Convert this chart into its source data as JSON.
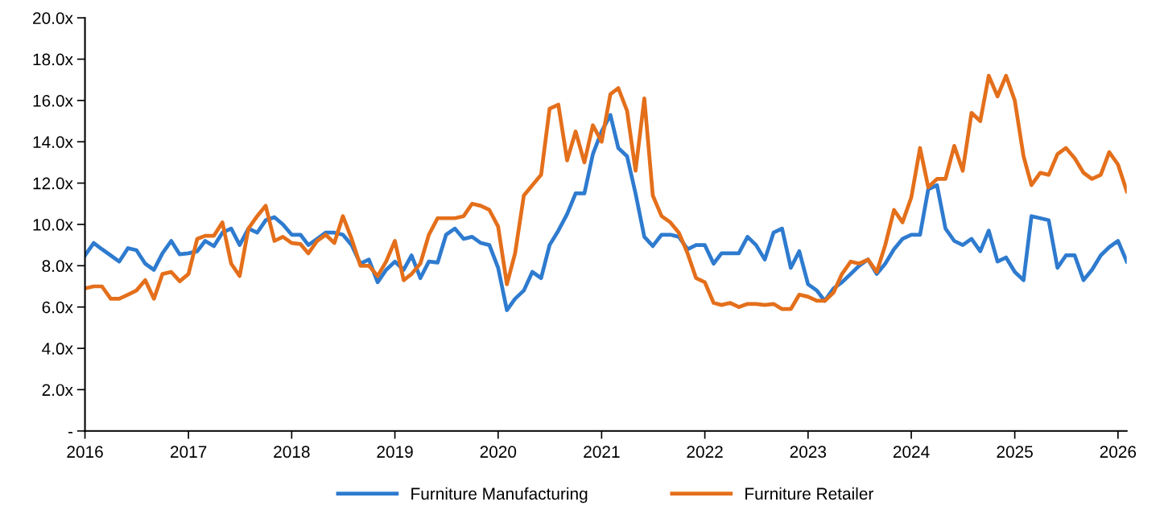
{
  "chart_data": {
    "type": "line",
    "x": [
      "2016-01",
      "2016-02",
      "2016-03",
      "2016-04",
      "2016-05",
      "2016-06",
      "2016-07",
      "2016-08",
      "2016-09",
      "2016-10",
      "2016-11",
      "2016-12",
      "2017-01",
      "2017-02",
      "2017-03",
      "2017-04",
      "2017-05",
      "2017-06",
      "2017-07",
      "2017-08",
      "2017-09",
      "2017-10",
      "2017-11",
      "2017-12",
      "2018-01",
      "2018-02",
      "2018-03",
      "2018-04",
      "2018-05",
      "2018-06",
      "2018-07",
      "2018-08",
      "2018-09",
      "2018-10",
      "2018-11",
      "2018-12",
      "2019-01",
      "2019-02",
      "2019-03",
      "2019-04",
      "2019-05",
      "2019-06",
      "2019-07",
      "2019-08",
      "2019-09",
      "2019-10",
      "2019-11",
      "2019-12",
      "2020-01",
      "2020-02",
      "2020-03",
      "2020-04",
      "2020-05",
      "2020-06",
      "2020-07",
      "2020-08",
      "2020-09",
      "2020-10",
      "2020-11",
      "2020-12",
      "2021-01",
      "2021-02",
      "2021-03",
      "2021-04",
      "2021-05",
      "2021-06",
      "2021-07",
      "2021-08",
      "2021-09",
      "2021-10",
      "2021-11",
      "2021-12",
      "2022-01",
      "2022-02",
      "2022-03",
      "2022-04",
      "2022-05",
      "2022-06",
      "2022-07",
      "2022-08",
      "2022-09",
      "2022-10",
      "2022-11",
      "2022-12",
      "2023-01",
      "2023-02",
      "2023-03",
      "2023-04",
      "2023-05",
      "2023-06",
      "2023-07",
      "2023-08",
      "2023-09",
      "2023-10",
      "2023-11",
      "2023-12",
      "2024-01",
      "2024-02",
      "2024-03",
      "2024-04",
      "2024-05",
      "2024-06",
      "2024-07",
      "2024-08",
      "2024-09",
      "2024-10",
      "2024-11",
      "2024-12",
      "2025-01",
      "2025-02",
      "2025-03",
      "2025-04",
      "2025-05",
      "2025-06",
      "2025-07",
      "2025-08",
      "2025-09",
      "2025-10",
      "2025-11",
      "2025-12",
      "2026-01",
      "2026-02"
    ],
    "series": [
      {
        "name": "Furniture Manufacturing",
        "color": "#2e7bcf",
        "values": [
          8.5,
          9.1,
          8.8,
          8.5,
          8.2,
          8.85,
          8.75,
          8.1,
          7.8,
          8.6,
          9.2,
          8.55,
          8.6,
          8.7,
          9.2,
          8.95,
          9.6,
          9.8,
          9.0,
          9.8,
          9.6,
          10.2,
          10.35,
          10.0,
          9.5,
          9.5,
          9.0,
          9.3,
          9.6,
          9.6,
          9.5,
          9.0,
          8.1,
          8.3,
          7.2,
          7.8,
          8.2,
          7.8,
          8.5,
          7.4,
          8.2,
          8.15,
          9.5,
          9.8,
          9.3,
          9.4,
          9.1,
          9.0,
          7.9,
          5.85,
          6.4,
          6.8,
          7.7,
          7.4,
          9.0,
          9.7,
          10.5,
          11.5,
          11.5,
          13.4,
          14.5,
          15.3,
          13.7,
          13.3,
          11.5,
          9.4,
          8.95,
          9.5,
          9.5,
          9.4,
          8.8,
          9.0,
          9.0,
          8.1,
          8.6,
          8.6,
          8.6,
          9.4,
          9.0,
          8.3,
          9.6,
          9.8,
          7.9,
          8.7,
          7.1,
          6.8,
          6.3,
          6.9,
          7.2,
          7.6,
          8.0,
          8.3,
          7.6,
          8.1,
          8.8,
          9.3,
          9.5,
          9.5,
          11.7,
          11.9,
          9.8,
          9.2,
          9.0,
          9.3,
          8.7,
          9.7,
          8.2,
          8.4,
          7.7,
          7.3,
          10.4,
          10.3,
          10.2,
          7.9,
          8.5,
          8.5,
          7.3,
          7.8,
          8.5,
          8.9,
          9.2,
          8.2
        ]
      },
      {
        "name": "Furniture Retailer",
        "color": "#e46f1b",
        "values": [
          6.9,
          7.0,
          7.0,
          6.4,
          6.4,
          6.6,
          6.8,
          7.3,
          6.4,
          7.6,
          7.7,
          7.25,
          7.6,
          9.3,
          9.45,
          9.45,
          10.1,
          8.1,
          7.5,
          9.8,
          10.4,
          10.9,
          9.2,
          9.4,
          9.1,
          9.05,
          8.6,
          9.2,
          9.5,
          9.1,
          10.4,
          9.3,
          8.0,
          8.0,
          7.5,
          8.2,
          9.2,
          7.3,
          7.6,
          8.1,
          9.5,
          10.3,
          10.3,
          10.3,
          10.4,
          11.0,
          10.9,
          10.7,
          9.9,
          7.1,
          8.6,
          11.4,
          11.9,
          12.4,
          15.6,
          15.8,
          13.1,
          14.5,
          13.0,
          14.8,
          14.0,
          16.3,
          16.6,
          15.5,
          12.6,
          16.1,
          11.4,
          10.4,
          10.1,
          9.6,
          8.6,
          7.4,
          7.2,
          6.2,
          6.1,
          6.2,
          6.0,
          6.15,
          6.15,
          6.1,
          6.15,
          5.9,
          5.9,
          6.6,
          6.5,
          6.3,
          6.3,
          6.7,
          7.6,
          8.2,
          8.1,
          8.3,
          7.7,
          9.0,
          10.7,
          10.1,
          11.3,
          13.7,
          11.8,
          12.2,
          12.2,
          13.8,
          12.6,
          15.4,
          15.0,
          17.2,
          16.2,
          17.2,
          16.0,
          13.3,
          11.9,
          12.5,
          12.4,
          13.4,
          13.7,
          13.2,
          12.5,
          12.2,
          12.4,
          13.5,
          12.9,
          11.6
        ]
      }
    ],
    "xlim": [
      "2016-01",
      "2026-02"
    ],
    "xticks": [
      {
        "value": "2016-01",
        "label": "2016"
      },
      {
        "value": "2017-01",
        "label": "2017"
      },
      {
        "value": "2018-01",
        "label": "2018"
      },
      {
        "value": "2019-01",
        "label": "2019"
      },
      {
        "value": "2020-01",
        "label": "2020"
      },
      {
        "value": "2021-01",
        "label": "2021"
      },
      {
        "value": "2022-01",
        "label": "2022"
      },
      {
        "value": "2023-01",
        "label": "2023"
      },
      {
        "value": "2024-01",
        "label": "2024"
      },
      {
        "value": "2025-01",
        "label": "2025"
      },
      {
        "value": "2026-01",
        "label": "2026"
      }
    ],
    "ylim": [
      0,
      20
    ],
    "yticks": [
      {
        "value": 0,
        "label": "-"
      },
      {
        "value": 2,
        "label": "2.0x"
      },
      {
        "value": 4,
        "label": "4.0x"
      },
      {
        "value": 6,
        "label": "6.0x"
      },
      {
        "value": 8,
        "label": "8.0x"
      },
      {
        "value": 10,
        "label": "10.0x"
      },
      {
        "value": 12,
        "label": "12.0x"
      },
      {
        "value": 14,
        "label": "14.0x"
      },
      {
        "value": 16,
        "label": "16.0x"
      },
      {
        "value": 18,
        "label": "18.0x"
      },
      {
        "value": 20,
        "label": "20.0x"
      }
    ],
    "grid": false,
    "legend": "bottom",
    "marker": "none",
    "line_style": "solid"
  }
}
